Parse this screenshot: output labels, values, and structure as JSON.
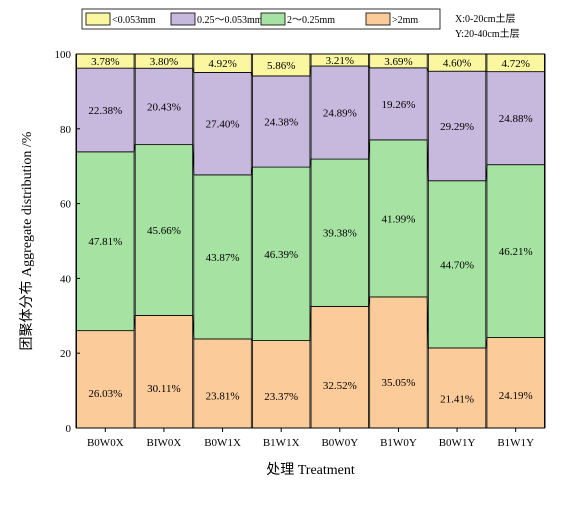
{
  "chart_data": {
    "type": "bar",
    "stacked": true,
    "xlabel": "处理  Treatment",
    "ylabel": "团聚体分布  Aggregate distribution /%",
    "ylim": [
      0,
      100
    ],
    "yticks": [
      0,
      20,
      40,
      60,
      80,
      100
    ],
    "grid": false,
    "legend_position": "top",
    "categories": [
      "B0W0X",
      "BIW0X",
      "B0W1X",
      "B1W1X",
      "B0W0Y",
      "B1W0Y",
      "B0W1Y",
      "B1W1Y"
    ],
    "series": [
      {
        "name": ">2mm",
        "color": "#FBCB9A",
        "values": [
          26.03,
          30.11,
          23.81,
          23.37,
          32.52,
          35.05,
          21.41,
          24.19
        ],
        "labels": [
          "26.03%",
          "30.11%",
          "23.81%",
          "23.37%",
          "32.52%",
          "35.05%",
          "21.41%",
          "24.19%"
        ]
      },
      {
        "name": "2～0.25mm",
        "color": "#A6E3A3",
        "values": [
          47.81,
          45.66,
          43.87,
          46.39,
          39.38,
          41.99,
          44.7,
          46.21
        ],
        "labels": [
          "47.81%",
          "45.66%",
          "43.87%",
          "46.39%",
          "39.38%",
          "41.99%",
          "44.70%",
          "46.21%"
        ]
      },
      {
        "name": "0.25～0.053mm",
        "color": "#C7B8DE",
        "values": [
          22.38,
          20.43,
          27.4,
          24.38,
          24.89,
          19.26,
          29.29,
          24.88
        ],
        "labels": [
          "22.38%",
          "20.43%",
          "27.40%",
          "24.38%",
          "24.89%",
          "19.26%",
          "29.29%",
          "24.88%"
        ]
      },
      {
        "name": "<0.053mm",
        "color": "#FBF7A0",
        "values": [
          3.78,
          3.8,
          4.92,
          5.86,
          3.21,
          3.69,
          4.6,
          4.72
        ],
        "labels": [
          "3.78%",
          "3.80%",
          "4.92%",
          "5.86%",
          "3.21%",
          "3.69%",
          "4.60%",
          "4.72%"
        ]
      }
    ],
    "legend_order": [
      "<0.053mm",
      "0.25～0.053mm",
      "2～0.25mm",
      ">2mm"
    ],
    "annotations": [
      "X:0-20cm土层",
      "Y:20-40cm土层"
    ]
  }
}
